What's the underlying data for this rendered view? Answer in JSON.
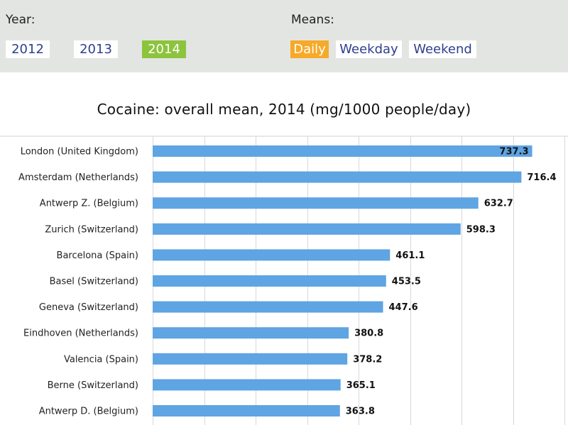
{
  "controls": {
    "year_label": "Year:",
    "means_label": "Means:",
    "years": [
      "2012",
      "2013",
      "2014"
    ],
    "selected_year": "2014",
    "means": [
      "Daily",
      "Weekday",
      "Weekend"
    ],
    "selected_mean": "Daily",
    "colors": {
      "panel_bg": "#e3e5e2",
      "year_active": "#8cc43c",
      "mean_active": "#f7a928",
      "link_text": "#2e3f8f"
    }
  },
  "chart_data": {
    "type": "bar",
    "orientation": "horizontal",
    "title": "Cocaine: overall mean, 2014 (mg/1000 people/day)",
    "categories": [
      "London (United Kingdom)",
      "Amsterdam (Netherlands)",
      "Antwerp Z. (Belgium)",
      "Zurich (Switzerland)",
      "Barcelona (Spain)",
      "Basel (Switzerland)",
      "Geneva (Switzerland)",
      "Eindhoven (Netherlands)",
      "Valencia (Spain)",
      "Berne (Switzerland)",
      "Antwerp D. (Belgium)"
    ],
    "values": [
      737.3,
      716.4,
      632.7,
      598.3,
      461.1,
      453.5,
      447.6,
      380.8,
      378.2,
      365.1,
      363.8
    ],
    "value_labels": [
      "737.3",
      "716.4",
      "632.7",
      "598.3",
      "461.1",
      "453.5",
      "447.6",
      "380.8",
      "378.2",
      "365.1",
      "363.8"
    ],
    "xlim": [
      0,
      800
    ],
    "grid": true,
    "bar_color": "#5fa4e3"
  }
}
